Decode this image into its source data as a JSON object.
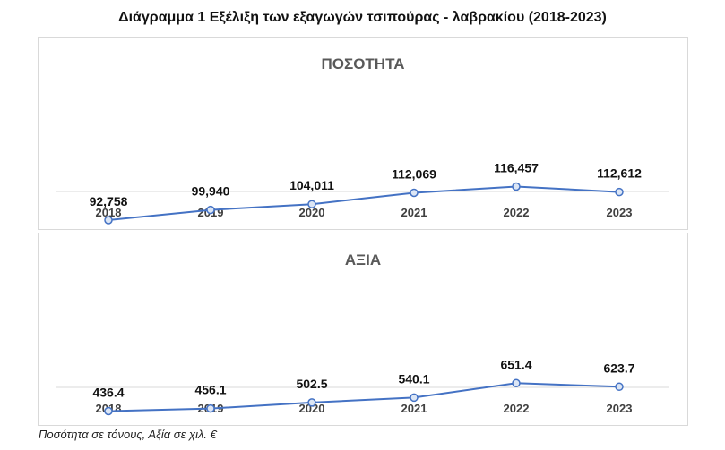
{
  "title": "Διάγραμμα 1 Εξέλιξη των εξαγωγών τσιπούρας - λαβρακίου (2018-2023)",
  "footnote": "Ποσότητα σε τόνους, Αξία σε χιλ. €",
  "colors": {
    "line": "#4472c4",
    "marker_fill": "#dce6f5",
    "axis": "#d9d9d9"
  },
  "chart_data": [
    {
      "type": "line",
      "title": "ΠΟΣΟΤΗΤΑ",
      "categories": [
        "2018",
        "2019",
        "2020",
        "2021",
        "2022",
        "2023"
      ],
      "values": [
        92758,
        99940,
        104011,
        112069,
        116457,
        112612
      ],
      "labels": [
        "92,758",
        "99,940",
        "104,011",
        "112,069",
        "116,457",
        "112,612"
      ],
      "ylim": [
        70000,
        125000
      ],
      "grid": false,
      "legend": "none"
    },
    {
      "type": "line",
      "title": "ΑΞΙΑ",
      "categories": [
        "2018",
        "2019",
        "2020",
        "2021",
        "2022",
        "2023"
      ],
      "values": [
        436.4,
        456.1,
        502.5,
        540.1,
        651.4,
        623.7
      ],
      "labels": [
        "436.4",
        "456.1",
        "502.5",
        "540.1",
        "651.4",
        "623.7"
      ],
      "ylim": [
        150,
        750
      ],
      "grid": false,
      "legend": "none"
    }
  ]
}
